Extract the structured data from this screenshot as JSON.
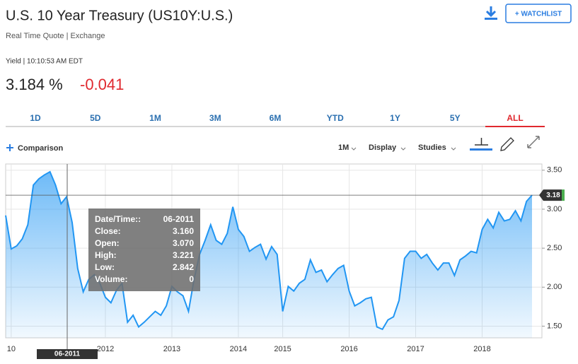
{
  "header": {
    "title": "U.S. 10 Year Treasury (US10Y:U.S.)",
    "subtitle": "Real Time Quote | Exchange",
    "watchlist": "+ WATCHLIST"
  },
  "quote": {
    "label": "Yield | 10:10:53 AM EDT",
    "price": "3.184 %",
    "change": "-0.041"
  },
  "tabs": [
    "1D",
    "5D",
    "1M",
    "3M",
    "6M",
    "YTD",
    "1Y",
    "5Y",
    "ALL"
  ],
  "toolbar": {
    "comparison": "Comparison",
    "interval": "1M",
    "display": "Display",
    "studies": "Studies"
  },
  "chart_data": {
    "type": "area",
    "color": "#2196f3",
    "grid": true,
    "categories": [
      null,
      "10",
      null,
      null,
      null,
      null,
      null,
      null,
      null,
      null,
      null,
      null,
      null,
      null,
      null,
      null,
      null,
      null,
      "2012",
      null,
      null,
      null,
      null,
      null,
      null,
      null,
      null,
      null,
      null,
      null,
      "2013",
      null,
      null,
      null,
      null,
      null,
      null,
      null,
      null,
      null,
      null,
      null,
      "2014",
      null,
      null,
      null,
      null,
      null,
      null,
      null,
      "2015",
      null,
      null,
      null,
      null,
      null,
      null,
      null,
      null,
      null,
      null,
      null,
      "2016",
      null,
      null,
      null,
      null,
      null,
      null,
      null,
      null,
      null,
      null,
      null,
      "2017",
      null,
      null,
      null,
      null,
      null,
      null,
      null,
      null,
      null,
      null,
      null,
      "2018",
      null,
      null,
      null,
      null,
      null,
      null,
      null,
      null,
      null
    ],
    "values": [
      2.92,
      2.49,
      2.53,
      2.62,
      2.8,
      3.31,
      3.39,
      3.44,
      3.48,
      3.31,
      3.07,
      3.16,
      2.83,
      2.24,
      1.94,
      2.1,
      2.16,
      2.05,
      1.87,
      1.8,
      1.96,
      2.05,
      1.55,
      1.64,
      1.49,
      1.55,
      1.62,
      1.69,
      1.64,
      1.76,
      2.01,
      1.94,
      1.89,
      1.69,
      2.1,
      2.42,
      2.6,
      2.8,
      2.6,
      2.55,
      2.69,
      3.03,
      2.74,
      2.65,
      2.46,
      2.51,
      2.55,
      2.36,
      2.52,
      2.42,
      1.69,
      2.01,
      1.95,
      2.05,
      2.1,
      2.35,
      2.19,
      2.22,
      2.07,
      2.16,
      2.24,
      2.28,
      1.95,
      1.76,
      1.8,
      1.85,
      1.87,
      1.49,
      1.46,
      1.58,
      1.62,
      1.83,
      2.37,
      2.46,
      2.46,
      2.37,
      2.42,
      2.31,
      2.22,
      2.31,
      2.31,
      2.15,
      2.35,
      2.4,
      2.46,
      2.44,
      2.74,
      2.87,
      2.76,
      2.96,
      2.85,
      2.87,
      2.98,
      2.85,
      3.1,
      3.18
    ],
    "ylim": [
      1.35,
      3.58
    ],
    "yticks": [
      {
        "value": 1.5,
        "label": "1.50"
      },
      {
        "value": 2,
        "label": "2.00"
      },
      {
        "value": 2.5,
        "label": "2.50"
      },
      {
        "value": 3,
        "label": "3.00"
      },
      {
        "value": 3.5,
        "label": "3.50"
      }
    ],
    "last_label": "3.18",
    "crosshair_label": "06-2011",
    "tooltip": [
      {
        "label": "Date/Time::",
        "value": "06-2011"
      },
      {
        "label": "Close:",
        "value": "3.160"
      },
      {
        "label": "Open:",
        "value": "3.070"
      },
      {
        "label": "High:",
        "value": "3.221"
      },
      {
        "label": "Low:",
        "value": "2.842"
      },
      {
        "label": "Volume:",
        "value": "0"
      }
    ]
  }
}
